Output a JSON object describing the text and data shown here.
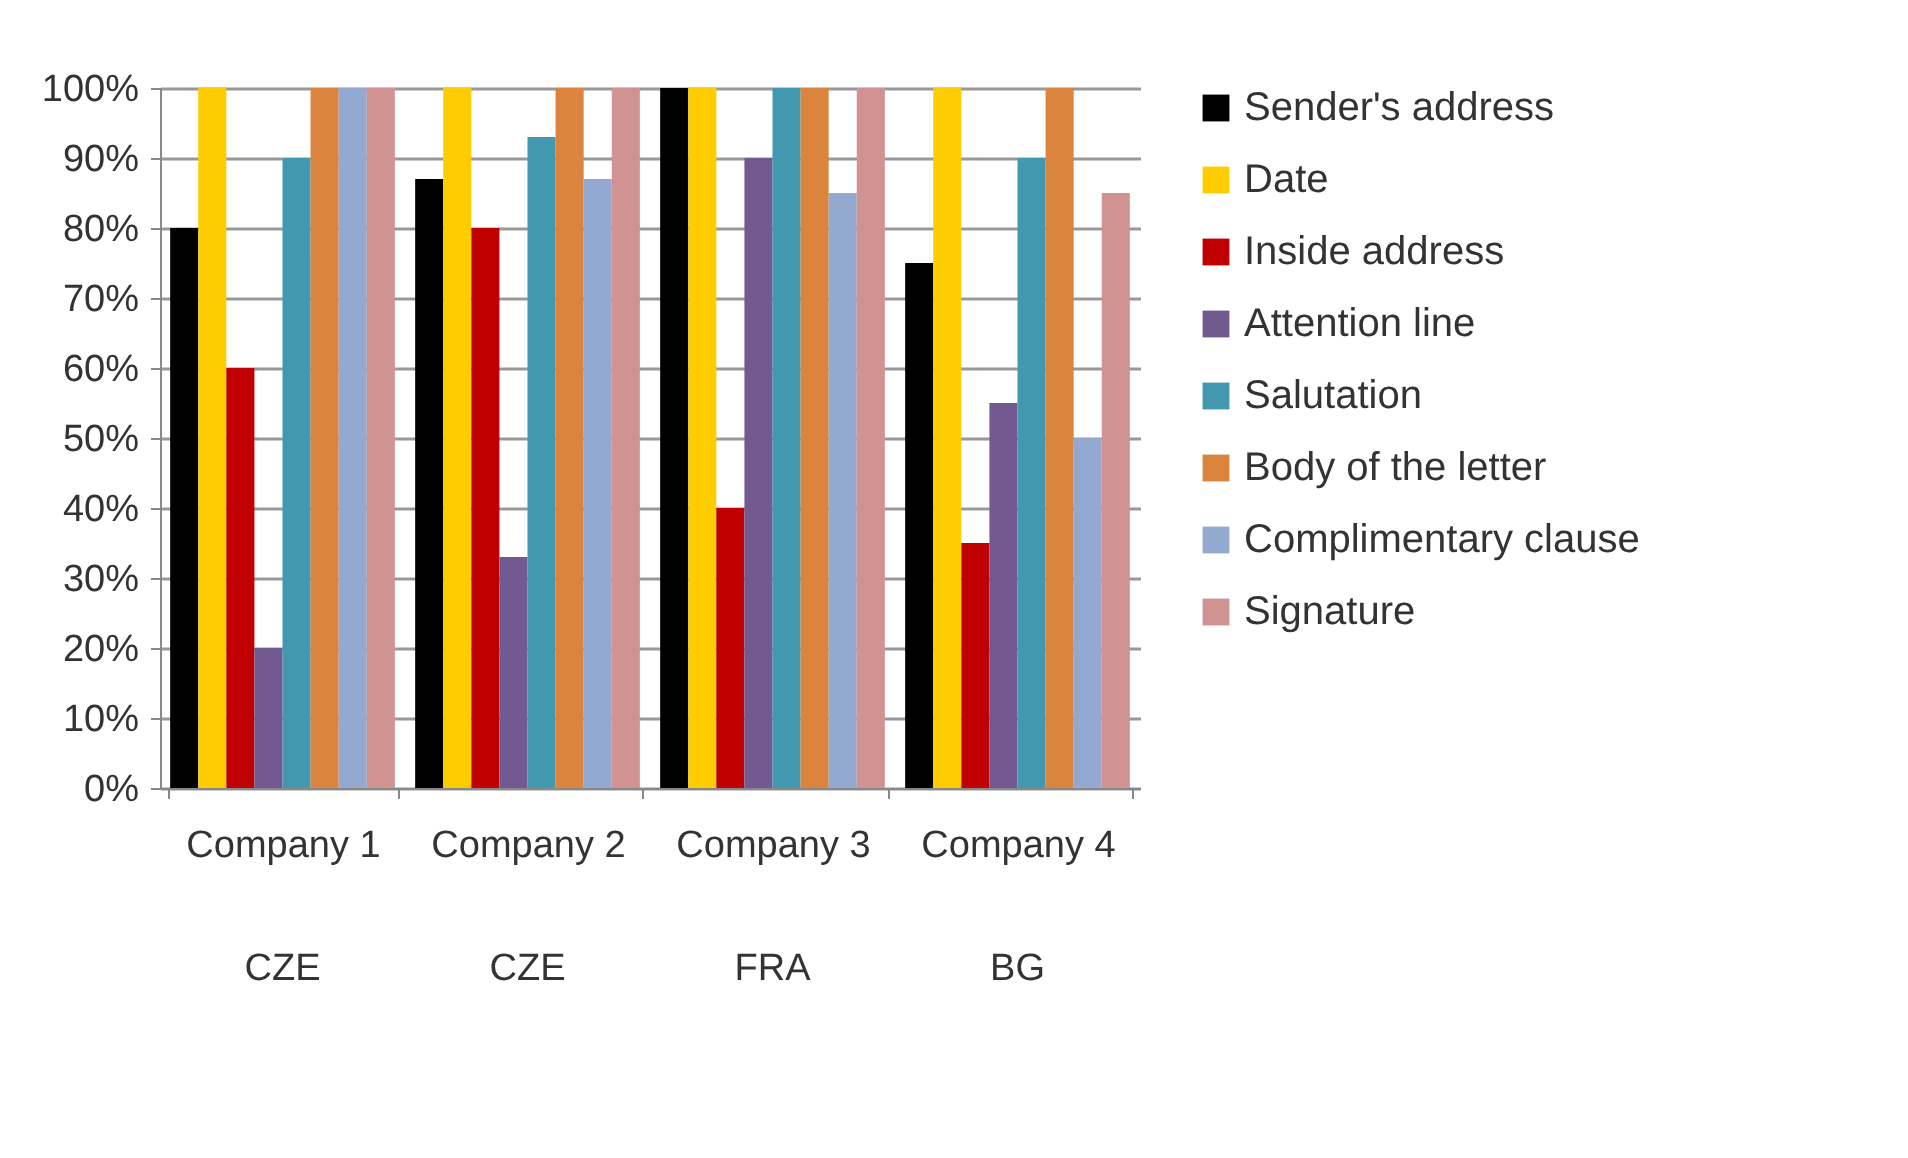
{
  "chart_data": {
    "type": "bar",
    "categories": [
      "Company 1",
      "Company 2",
      "Company 3",
      "Company 4"
    ],
    "series": [
      {
        "name": "Sender's address",
        "color": "#000000",
        "values": [
          80,
          87,
          100,
          75
        ]
      },
      {
        "name": "Date",
        "color": "#ffcc00",
        "values": [
          100,
          100,
          100,
          100
        ]
      },
      {
        "name": "Inside address",
        "color": "#c00000",
        "values": [
          60,
          80,
          40,
          35
        ]
      },
      {
        "name": "Attention line",
        "color": "#725990",
        "values": [
          20,
          33,
          90,
          55
        ]
      },
      {
        "name": "Salutation",
        "color": "#4198af",
        "values": [
          90,
          93,
          100,
          90
        ]
      },
      {
        "name": "Body of the letter",
        "color": "#db843d",
        "values": [
          100,
          100,
          100,
          100
        ]
      },
      {
        "name": "Complimentary clause",
        "color": "#93a9d0",
        "values": [
          100,
          87,
          85,
          50
        ]
      },
      {
        "name": "Signature",
        "color": "#d09392",
        "values": [
          100,
          100,
          100,
          85
        ]
      }
    ],
    "ylim": [
      0,
      100
    ],
    "yticks": [
      {
        "value": 0,
        "label": "0%"
      },
      {
        "value": 10,
        "label": "10%"
      },
      {
        "value": 20,
        "label": "20%"
      },
      {
        "value": 30,
        "label": "30%"
      },
      {
        "value": 40,
        "label": "40%"
      },
      {
        "value": 50,
        "label": "50%"
      },
      {
        "value": 60,
        "label": "60%"
      },
      {
        "value": 70,
        "label": "70%"
      },
      {
        "value": 80,
        "label": "80%"
      },
      {
        "value": 90,
        "label": "90%"
      },
      {
        "value": 100,
        "label": "100%"
      }
    ],
    "annotations": [
      "CZE",
      "CZE",
      "FRA",
      "BG"
    ],
    "grid": "y",
    "legend": "right"
  }
}
